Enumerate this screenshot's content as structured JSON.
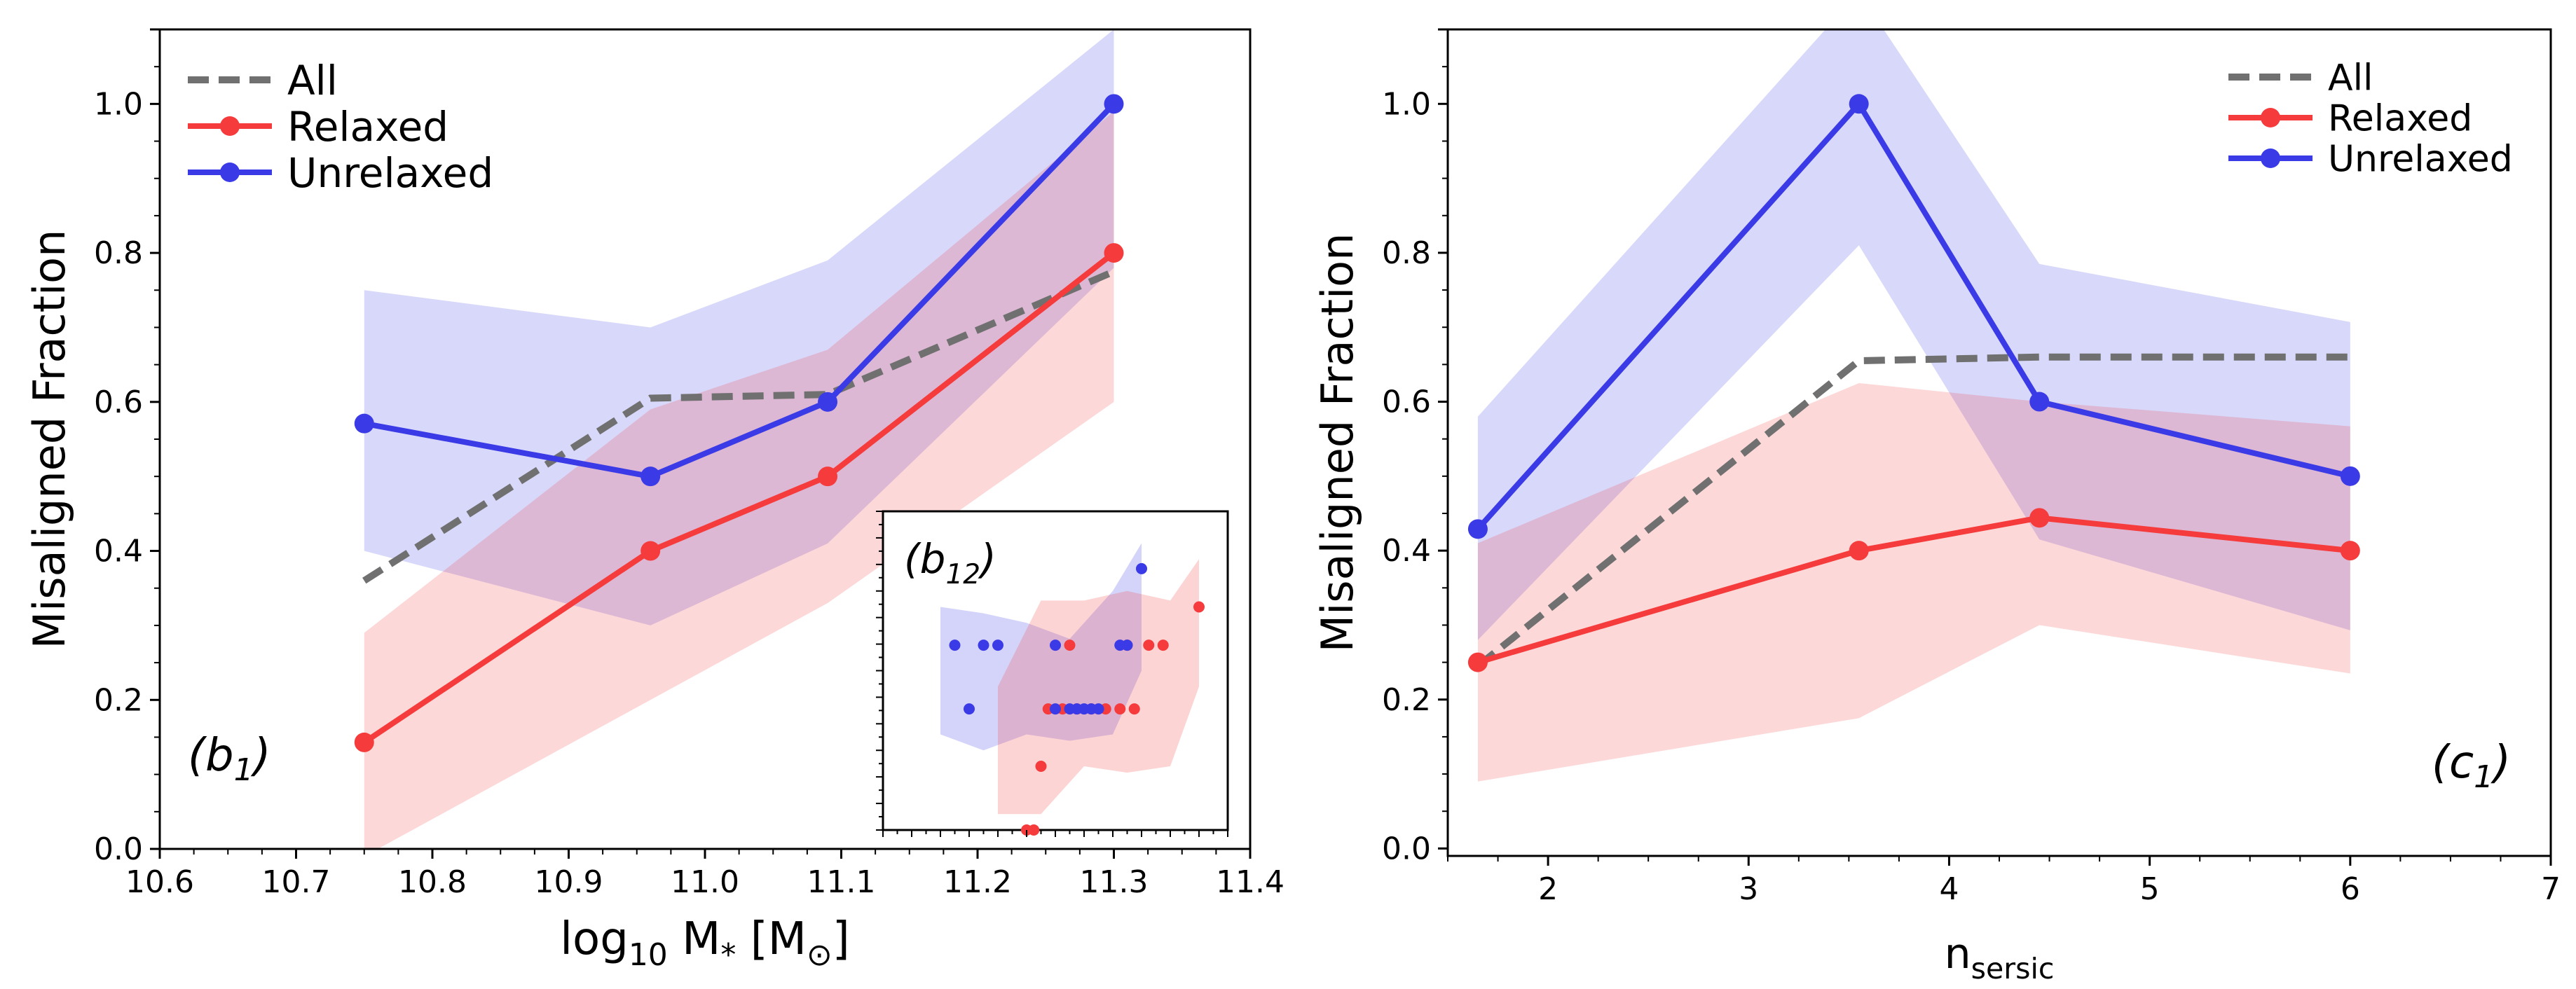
{
  "colors": {
    "all": "#707070",
    "relaxed": "#f53b3b",
    "unrelaxed": "#3a3ae6",
    "relaxed_band": "#ffcccc",
    "unrelaxed_band": "#ccccff"
  },
  "chart_data": [
    {
      "type": "line",
      "panel_label": "(b1)",
      "xlabel": "log10 M* [M⊙]",
      "ylabel": "Misaligned Fraction",
      "xlim": [
        10.6,
        11.4
      ],
      "ylim": [
        0.0,
        1.1
      ],
      "xticks": [
        "10.6",
        "10.7",
        "10.8",
        "10.9",
        "11.0",
        "11.1",
        "11.2",
        "11.3",
        "11.4"
      ],
      "yticks": [
        "0.0",
        "0.2",
        "0.4",
        "0.6",
        "0.8",
        "1.0"
      ],
      "legend": {
        "placement": "top-left",
        "entries": [
          "All",
          "Relaxed",
          "Unrelaxed"
        ]
      },
      "series": [
        {
          "name": "All",
          "style": "dashed",
          "x": [
            10.75,
            10.96,
            11.09,
            11.3
          ],
          "y": [
            0.36,
            0.605,
            0.61,
            0.775
          ]
        },
        {
          "name": "Relaxed",
          "style": "solid-markers",
          "x": [
            10.75,
            10.96,
            11.09,
            11.3
          ],
          "y": [
            0.143,
            0.4,
            0.5,
            0.8
          ],
          "band_low": [
            -0.01,
            0.2,
            0.33,
            0.6
          ],
          "band_high": [
            0.29,
            0.59,
            0.67,
            0.99
          ]
        },
        {
          "name": "Unrelaxed",
          "style": "solid-markers",
          "x": [
            10.75,
            10.96,
            11.09,
            11.3
          ],
          "y": [
            0.571,
            0.5,
            0.6,
            1.0
          ],
          "band_low": [
            0.4,
            0.3,
            0.41,
            0.78
          ],
          "band_high": [
            0.75,
            0.7,
            0.79,
            1.1
          ]
        }
      ],
      "inset": {
        "panel_label": "(b12)",
        "xlim": [
          11.12,
          11.36
        ],
        "ylim": [
          0.0,
          1.0
        ],
        "relaxed_points": [
          [
            11.22,
            0.0
          ],
          [
            11.225,
            0.0
          ],
          [
            11.23,
            0.2
          ],
          [
            11.235,
            0.38
          ],
          [
            11.245,
            0.38
          ],
          [
            11.255,
            0.38
          ],
          [
            11.265,
            0.38
          ],
          [
            11.275,
            0.38
          ],
          [
            11.285,
            0.38
          ],
          [
            11.295,
            0.38
          ],
          [
            11.25,
            0.58
          ],
          [
            11.29,
            0.58
          ],
          [
            11.305,
            0.58
          ],
          [
            11.315,
            0.58
          ],
          [
            11.34,
            0.7
          ]
        ],
        "unrelaxed_points": [
          [
            11.17,
            0.58
          ],
          [
            11.18,
            0.38
          ],
          [
            11.19,
            0.58
          ],
          [
            11.2,
            0.58
          ],
          [
            11.24,
            0.58
          ],
          [
            11.24,
            0.38
          ],
          [
            11.25,
            0.38
          ],
          [
            11.255,
            0.38
          ],
          [
            11.26,
            0.38
          ],
          [
            11.265,
            0.38
          ],
          [
            11.27,
            0.38
          ],
          [
            11.285,
            0.58
          ],
          [
            11.29,
            0.58
          ],
          [
            11.3,
            0.82
          ]
        ],
        "relaxed_band": {
          "x": [
            11.2,
            11.23,
            11.26,
            11.29,
            11.32,
            11.34
          ],
          "low": [
            0.05,
            0.05,
            0.2,
            0.18,
            0.2,
            0.45
          ],
          "high": [
            0.45,
            0.72,
            0.72,
            0.75,
            0.72,
            0.85
          ]
        },
        "unrelaxed_band": {
          "x": [
            11.16,
            11.19,
            11.22,
            11.25,
            11.28,
            11.3
          ],
          "low": [
            0.3,
            0.25,
            0.3,
            0.28,
            0.3,
            0.5
          ],
          "high": [
            0.7,
            0.68,
            0.65,
            0.6,
            0.75,
            0.9
          ]
        }
      }
    },
    {
      "type": "line",
      "panel_label": "(c1)",
      "xlabel": "nsersic",
      "ylabel": "Misaligned Fraction",
      "xlim": [
        1.5,
        7.0
      ],
      "ylim": [
        -0.01,
        1.1
      ],
      "xticks": [
        "2",
        "3",
        "4",
        "5",
        "6",
        "7"
      ],
      "yticks": [
        "0.0",
        "0.2",
        "0.4",
        "0.6",
        "0.8",
        "1.0"
      ],
      "legend": {
        "placement": "top-right",
        "entries": [
          "All",
          "Relaxed",
          "Unrelaxed"
        ]
      },
      "series": [
        {
          "name": "All",
          "style": "dashed",
          "x": [
            1.65,
            3.55,
            4.45,
            6.0
          ],
          "y": [
            0.245,
            0.655,
            0.66,
            0.66
          ]
        },
        {
          "name": "Relaxed",
          "style": "solid-markers",
          "x": [
            1.65,
            3.55,
            4.45,
            6.0
          ],
          "y": [
            0.25,
            0.4,
            0.444,
            0.4
          ],
          "band_low": [
            0.09,
            0.175,
            0.3,
            0.235
          ],
          "band_high": [
            0.41,
            0.625,
            0.6,
            0.567
          ]
        },
        {
          "name": "Unrelaxed",
          "style": "solid-markers",
          "x": [
            1.65,
            3.55,
            4.45,
            6.0
          ],
          "y": [
            0.429,
            1.0,
            0.6,
            0.5
          ],
          "band_low": [
            0.28,
            0.81,
            0.415,
            0.293
          ],
          "band_high": [
            0.58,
            1.15,
            0.785,
            0.707
          ]
        }
      ]
    }
  ]
}
